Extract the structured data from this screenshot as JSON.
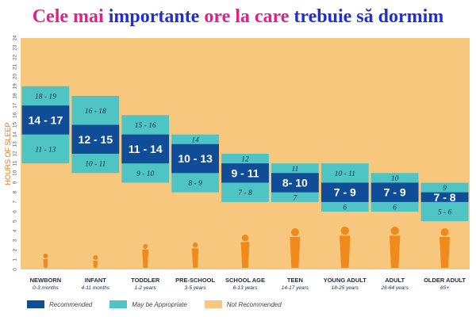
{
  "title": {
    "parts": [
      {
        "text": "Cele ",
        "color": "#e0218a"
      },
      {
        "text": "mai ",
        "color": "#e0218a"
      },
      {
        "text": "importante ",
        "color": "#1f2fd0"
      },
      {
        "text": "ore la care ",
        "color": "#e0218a"
      },
      {
        "text": "trebuie să ",
        "color": "#1f2fd0"
      },
      {
        "text": "dormim",
        "color": "#1f2fd0"
      }
    ]
  },
  "colors": {
    "background": "#f8c77e",
    "recommended": "#0f4d96",
    "may_be_appropriate": "#4fc4c4",
    "axis_text": "#555555",
    "ylabel": "#e87722",
    "silhouette": "#f08a1c",
    "category_text": "#1a2a4a"
  },
  "legend": [
    {
      "label": "Recommended",
      "color_key": "recommended"
    },
    {
      "label": "May be Appropriate",
      "color_key": "may_be_appropriate"
    },
    {
      "label": "Not Recommended",
      "color_key": "background"
    }
  ],
  "chart_data": {
    "type": "bar",
    "ylabel": "HOURS OF SLEEP",
    "ylim": [
      0,
      24
    ],
    "yticks": [
      0,
      1,
      2,
      3,
      4,
      5,
      6,
      7,
      8,
      9,
      10,
      11,
      12,
      13,
      14,
      15,
      16,
      17,
      18,
      19,
      20,
      21,
      22,
      23,
      24
    ],
    "categories": [
      {
        "name": "NEWBORN",
        "age": "0-3 months",
        "rec_low": 14,
        "rec_high": 17,
        "low_app": 11,
        "high_app": 19,
        "rec_label": "14 - 17",
        "low_label": "11 - 13",
        "high_label": "18 - 19"
      },
      {
        "name": "INFANT",
        "age": "4-11 months",
        "rec_low": 12,
        "rec_high": 15,
        "low_app": 10,
        "high_app": 18,
        "rec_label": "12 - 15",
        "low_label": "10 - 11",
        "high_label": "16 - 18"
      },
      {
        "name": "TODDLER",
        "age": "1-2 years",
        "rec_low": 11,
        "rec_high": 14,
        "low_app": 9,
        "high_app": 16,
        "rec_label": "11 - 14",
        "low_label": "9 - 10",
        "high_label": "15 - 16"
      },
      {
        "name": "PRE-SCHOOL",
        "age": "3-5 years",
        "rec_low": 10,
        "rec_high": 13,
        "low_app": 8,
        "high_app": 14,
        "rec_label": "10 - 13",
        "low_label": "8 - 9",
        "high_label": "14"
      },
      {
        "name": "SCHOOL AGE",
        "age": "6-13 years",
        "rec_low": 9,
        "rec_high": 11,
        "low_app": 7,
        "high_app": 12,
        "rec_label": "9 - 11",
        "low_label": "7 - 8",
        "high_label": "12"
      },
      {
        "name": "TEEN",
        "age": "14-17 years",
        "rec_low": 8,
        "rec_high": 10,
        "low_app": 7,
        "high_app": 11,
        "rec_label": "8- 10",
        "low_label": "7",
        "high_label": "11"
      },
      {
        "name": "YOUNG ADULT",
        "age": "18-25 years",
        "rec_low": 7,
        "rec_high": 9,
        "low_app": 6,
        "high_app": 11,
        "rec_label": "7 - 9",
        "low_label": "6",
        "high_label": "10 - 11"
      },
      {
        "name": "ADULT",
        "age": "26-64 years",
        "rec_low": 7,
        "rec_high": 9,
        "low_app": 6,
        "high_app": 10,
        "rec_label": "7 - 9",
        "low_label": "6",
        "high_label": "10"
      },
      {
        "name": "OLDER ADULT",
        "age": "65+",
        "rec_low": 7,
        "rec_high": 8,
        "low_app": 5,
        "high_app": 9,
        "rec_label": "7 - 8",
        "low_label": "5 - 6",
        "high_label": "9"
      }
    ]
  }
}
